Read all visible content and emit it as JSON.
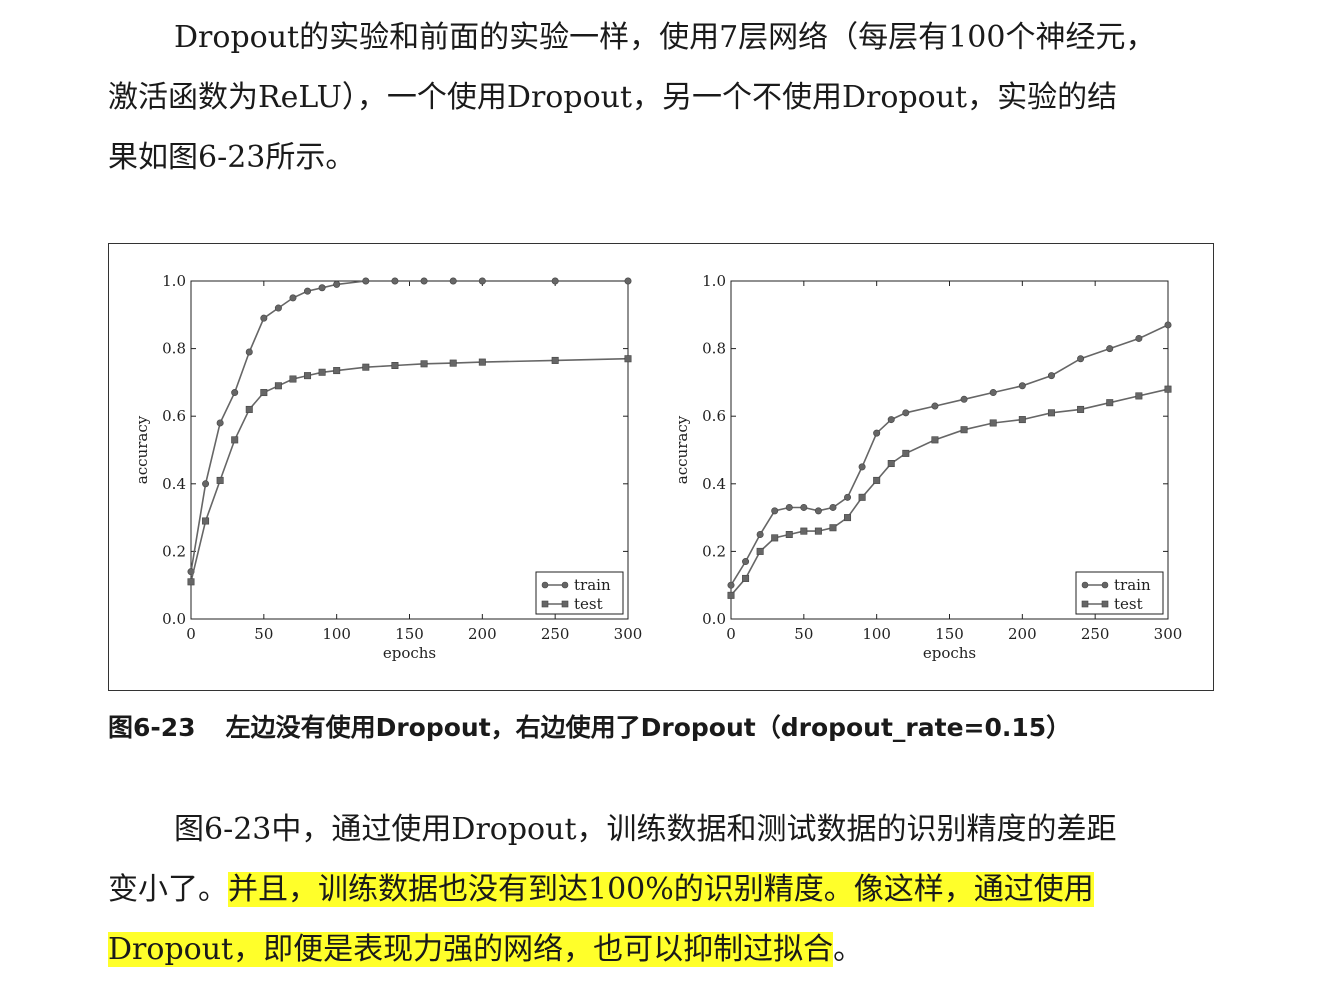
{
  "intro": {
    "line1": "Dropout的实验和前面的实验一样，使用7层网络（每层有100个神经元，",
    "line2": "激活函数为ReLU），一个使用Dropout，另一个不使用Dropout，实验的结",
    "line3": "果如图6-23所示。"
  },
  "caption": {
    "label": "图6-23",
    "text": "左边没有使用Dropout，右边使用了Dropout（dropout_rate=0.15）"
  },
  "outro": {
    "line1": "图6-23中，通过使用Dropout，训练数据和测试数据的识别精度的差距",
    "line2_plain": "变小了。",
    "line2_hl": "并且，训练数据也没有到达100%的识别精度。像这样，通过使用",
    "line3_hl": "Dropout，即便是表现力强的网络，也可以抑制过拟合",
    "line3_plain": "。"
  },
  "colors": {
    "highlight": "#ffff2a",
    "series": "#666666",
    "text": "#1a1a1a"
  },
  "chart_data": [
    {
      "type": "line",
      "xlabel": "epochs",
      "ylabel": "accuracy",
      "xlim": [
        0,
        300
      ],
      "ylim": [
        0,
        1.0
      ],
      "xticks": [
        "0",
        "50",
        "100",
        "150",
        "200",
        "250",
        "300"
      ],
      "yticks": [
        "0.0",
        "0.2",
        "0.4",
        "0.6",
        "0.8",
        "1.0"
      ],
      "legend_position": "bottom-right",
      "series": [
        {
          "name": "train",
          "marker": "circle",
          "x": [
            0,
            10,
            20,
            30,
            40,
            50,
            60,
            70,
            80,
            90,
            100,
            120,
            140,
            160,
            180,
            200,
            250,
            300
          ],
          "y": [
            0.14,
            0.4,
            0.58,
            0.67,
            0.79,
            0.89,
            0.92,
            0.95,
            0.97,
            0.98,
            0.99,
            1.0,
            1.0,
            1.0,
            1.0,
            1.0,
            1.0,
            1.0
          ]
        },
        {
          "name": "test",
          "marker": "square",
          "x": [
            0,
            10,
            20,
            30,
            40,
            50,
            60,
            70,
            80,
            90,
            100,
            120,
            140,
            160,
            180,
            200,
            250,
            300
          ],
          "y": [
            0.11,
            0.29,
            0.41,
            0.53,
            0.62,
            0.67,
            0.69,
            0.71,
            0.72,
            0.73,
            0.735,
            0.745,
            0.75,
            0.755,
            0.757,
            0.76,
            0.765,
            0.77
          ]
        }
      ]
    },
    {
      "type": "line",
      "xlabel": "epochs",
      "ylabel": "accuracy",
      "xlim": [
        0,
        300
      ],
      "ylim": [
        0,
        1.0
      ],
      "xticks": [
        "0",
        "50",
        "100",
        "150",
        "200",
        "250",
        "300"
      ],
      "yticks": [
        "0.0",
        "0.2",
        "0.4",
        "0.6",
        "0.8",
        "1.0"
      ],
      "legend_position": "bottom-right",
      "series": [
        {
          "name": "train",
          "marker": "circle",
          "x": [
            0,
            10,
            20,
            30,
            40,
            50,
            60,
            70,
            80,
            90,
            100,
            110,
            120,
            140,
            160,
            180,
            200,
            220,
            240,
            260,
            280,
            300
          ],
          "y": [
            0.1,
            0.17,
            0.25,
            0.32,
            0.33,
            0.33,
            0.32,
            0.33,
            0.36,
            0.45,
            0.55,
            0.59,
            0.61,
            0.63,
            0.65,
            0.67,
            0.69,
            0.72,
            0.77,
            0.8,
            0.83,
            0.87
          ]
        },
        {
          "name": "test",
          "marker": "square",
          "x": [
            0,
            10,
            20,
            30,
            40,
            50,
            60,
            70,
            80,
            90,
            100,
            110,
            120,
            140,
            160,
            180,
            200,
            220,
            240,
            260,
            280,
            300
          ],
          "y": [
            0.07,
            0.12,
            0.2,
            0.24,
            0.25,
            0.26,
            0.26,
            0.27,
            0.3,
            0.36,
            0.41,
            0.46,
            0.49,
            0.53,
            0.56,
            0.58,
            0.59,
            0.61,
            0.62,
            0.64,
            0.66,
            0.68
          ]
        }
      ]
    }
  ]
}
